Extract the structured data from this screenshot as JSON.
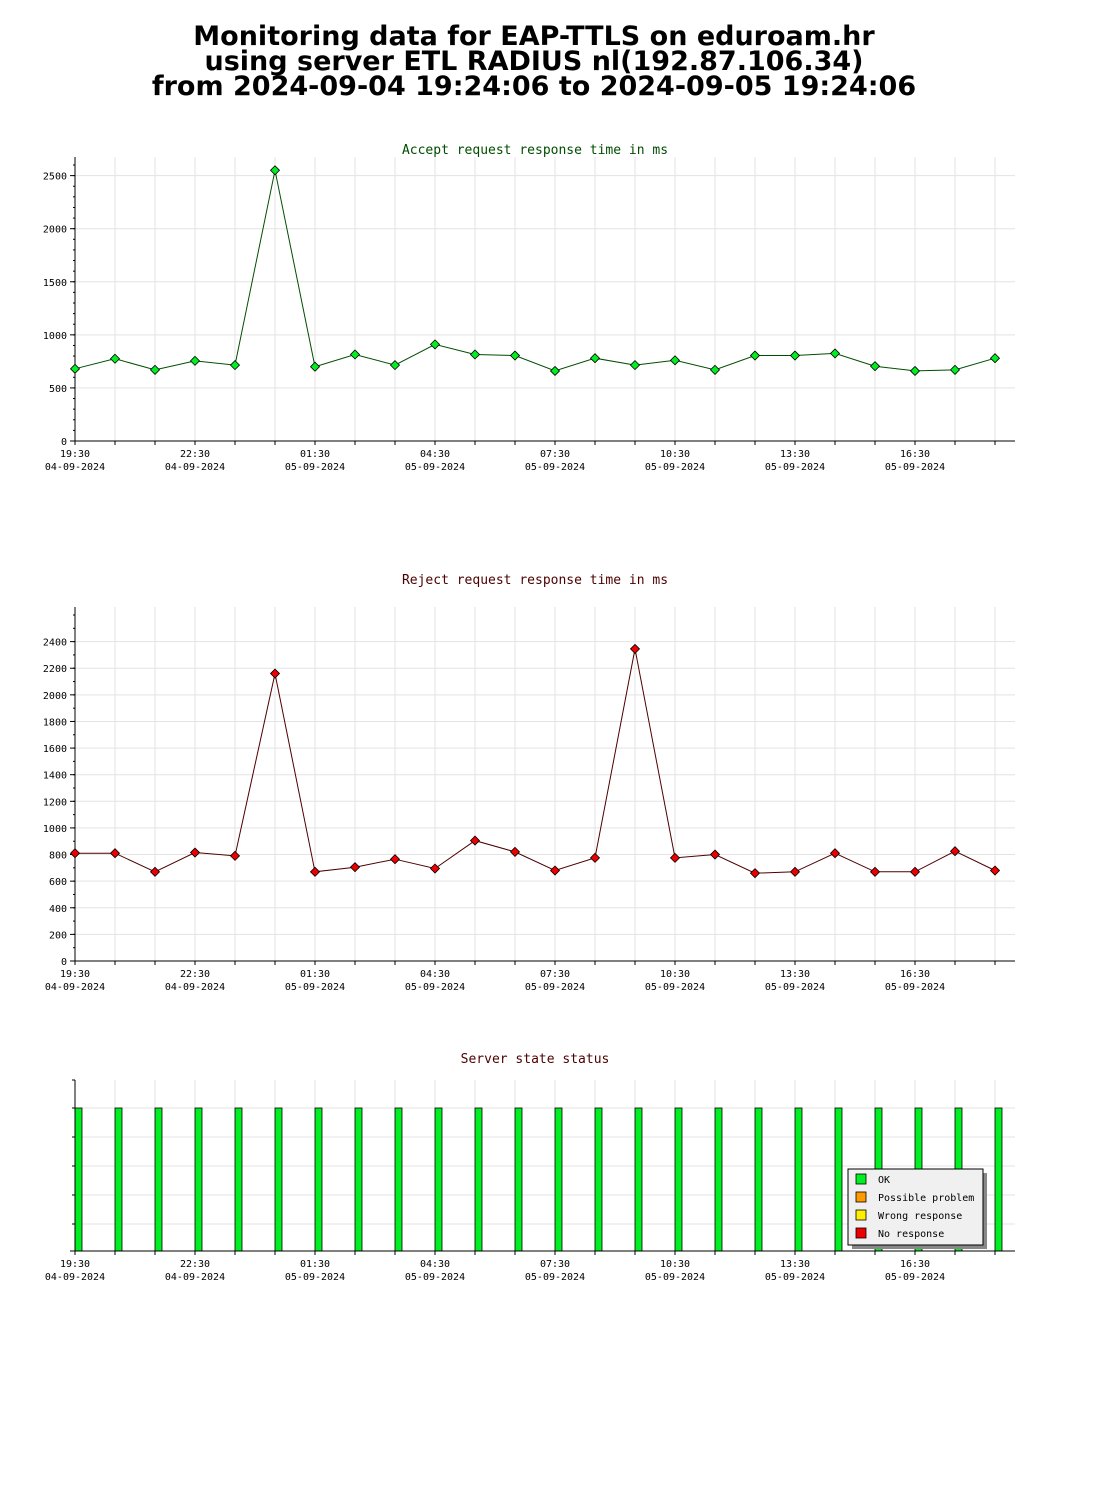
{
  "header": {
    "line1": "Monitoring data for EAP-TTLS on eduroam.hr",
    "line2": "using server ETL RADIUS nl(192.87.106.34)",
    "line3": "from 2024-09-04 19:24:06 to 2024-09-05 19:24:06"
  },
  "colors": {
    "accept_line": "#004d00",
    "accept_marker": "#00ee22",
    "reject_line": "#4d0000",
    "reject_marker": "#ee0000",
    "status_ok": "#00ee22",
    "status_possible_problem": "#ff9900",
    "status_wrong_response": "#ffee00",
    "status_no_response": "#ee0000",
    "grid": "#e3e3e3"
  },
  "chart_data": [
    {
      "type": "line",
      "title": "Accept request response time in ms",
      "x_tick_labels": [
        [
          "19:30",
          "04-09-2024"
        ],
        [
          "22:30",
          "04-09-2024"
        ],
        [
          "01:30",
          "05-09-2024"
        ],
        [
          "04:30",
          "05-09-2024"
        ],
        [
          "07:30",
          "05-09-2024"
        ],
        [
          "10:30",
          "05-09-2024"
        ],
        [
          "13:30",
          "05-09-2024"
        ],
        [
          "16:30",
          "05-09-2024"
        ]
      ],
      "y_ticks": [
        0,
        500,
        1000,
        1500,
        2000,
        2500
      ],
      "ylim": [
        0,
        2600
      ],
      "grid": true,
      "series": [
        {
          "values": [
            680,
            775,
            670,
            755,
            715,
            2550,
            700,
            815,
            715,
            910,
            815,
            805,
            660,
            780,
            715,
            760,
            670,
            805,
            805,
            825,
            705,
            660,
            670,
            780
          ]
        }
      ]
    },
    {
      "type": "line",
      "title": "Reject request response time in ms",
      "x_tick_labels": [
        [
          "19:30",
          "04-09-2024"
        ],
        [
          "22:30",
          "04-09-2024"
        ],
        [
          "01:30",
          "05-09-2024"
        ],
        [
          "04:30",
          "05-09-2024"
        ],
        [
          "07:30",
          "05-09-2024"
        ],
        [
          "10:30",
          "05-09-2024"
        ],
        [
          "13:30",
          "05-09-2024"
        ],
        [
          "16:30",
          "05-09-2024"
        ]
      ],
      "y_ticks": [
        0,
        200,
        400,
        600,
        800,
        1000,
        1200,
        1400,
        1600,
        1800,
        2000,
        2200,
        2400
      ],
      "ylim": [
        0,
        2600
      ],
      "grid": true,
      "series": [
        {
          "values": [
            810,
            810,
            670,
            815,
            790,
            2160,
            670,
            705,
            765,
            695,
            905,
            820,
            680,
            775,
            2345,
            775,
            800,
            660,
            670,
            810,
            670,
            670,
            825,
            680
          ]
        }
      ]
    },
    {
      "type": "bar",
      "title": "Server state status",
      "x_tick_labels": [
        [
          "19:30",
          "04-09-2024"
        ],
        [
          "22:30",
          "04-09-2024"
        ],
        [
          "01:30",
          "05-09-2024"
        ],
        [
          "04:30",
          "05-09-2024"
        ],
        [
          "07:30",
          "05-09-2024"
        ],
        [
          "10:30",
          "05-09-2024"
        ],
        [
          "13:30",
          "05-09-2024"
        ],
        [
          "16:30",
          "05-09-2024"
        ]
      ],
      "grid": true,
      "legend_position": "bottom-right",
      "legend": [
        "OK",
        "Possible problem",
        "Wrong response",
        "No response"
      ],
      "series": [
        {
          "values": [
            "OK",
            "OK",
            "OK",
            "OK",
            "OK",
            "OK",
            "OK",
            "OK",
            "OK",
            "OK",
            "OK",
            "OK",
            "OK",
            "OK",
            "OK",
            "OK",
            "OK",
            "OK",
            "OK",
            "OK",
            "OK",
            "OK",
            "OK",
            "OK"
          ]
        }
      ]
    }
  ]
}
